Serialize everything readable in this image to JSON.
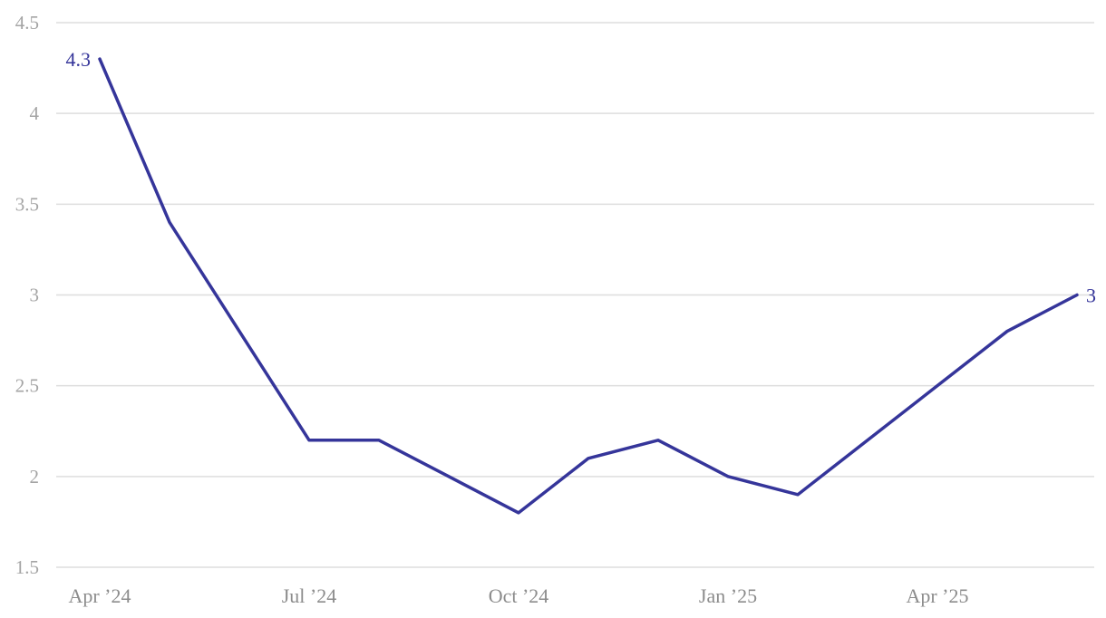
{
  "chart_data": {
    "type": "line",
    "title": "",
    "xlabel": "",
    "ylabel": "",
    "x": [
      "2024-04",
      "2024-05",
      "2024-06",
      "2024-07",
      "2024-08",
      "2024-09",
      "2024-10",
      "2024-11",
      "2024-12",
      "2025-01",
      "2025-02",
      "2025-03",
      "2025-04",
      "2025-05",
      "2025-06"
    ],
    "series": [
      {
        "values": [
          4.3,
          3.4,
          2.8,
          2.2,
          2.2,
          2.0,
          1.8,
          2.1,
          2.2,
          2.0,
          1.9,
          2.2,
          2.5,
          2.8,
          3.0
        ],
        "color": "#35359a"
      }
    ],
    "ylim": [
      1.5,
      4.5
    ],
    "yticks": [
      1.5,
      2,
      2.5,
      3,
      3.5,
      4,
      4.5
    ],
    "ytick_labels": [
      "1.5",
      "2",
      "2.5",
      "3",
      "3.5",
      "4",
      "4.5"
    ],
    "xticks": [
      {
        "x": "2024-04",
        "label": "Apr ’24"
      },
      {
        "x": "2024-07",
        "label": "Jul ’24"
      },
      {
        "x": "2024-10",
        "label": "Oct ’24"
      },
      {
        "x": "2025-01",
        "label": "Jan ’25"
      },
      {
        "x": "2025-04",
        "label": "Apr ’25"
      }
    ],
    "data_labels": [
      {
        "x": "2024-04",
        "value": 4.3,
        "text": "4.3"
      },
      {
        "x": "2025-06",
        "value": 3.0,
        "text": "3"
      }
    ],
    "grid": true,
    "legend": "none"
  }
}
